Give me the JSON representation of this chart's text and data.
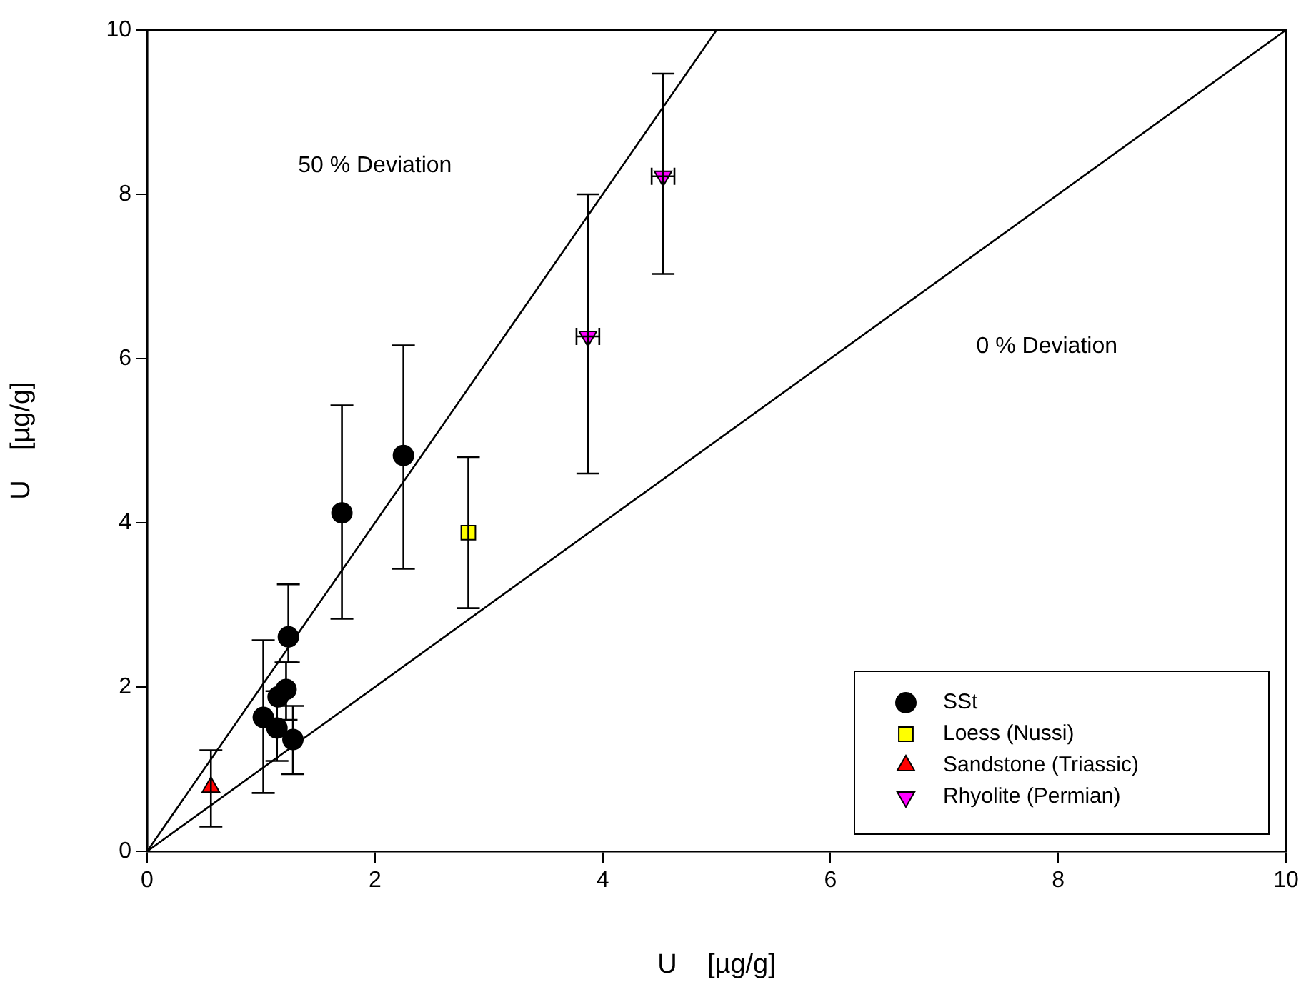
{
  "chart_data": {
    "type": "scatter",
    "xlabel": "U    [µg/g]",
    "ylabel": "U    [µg/g]",
    "xlim": [
      0,
      10
    ],
    "ylim": [
      0,
      10
    ],
    "xticks": [
      0,
      2,
      4,
      6,
      8,
      10
    ],
    "yticks": [
      0,
      2,
      4,
      6,
      8,
      10
    ],
    "grid": false,
    "legend": "bottom right",
    "series": [
      {
        "name": "SSt",
        "color": "#000000",
        "marker": "circle",
        "x": [
          1.02,
          1.14,
          1.28,
          1.15,
          1.22,
          1.24,
          1.71,
          2.25
        ],
        "values": [
          1.63,
          1.5,
          1.36,
          1.88,
          1.97,
          2.61,
          4.12,
          4.82
        ],
        "errors": [
          [
            0.71,
            2.57
          ],
          [
            1.1,
            1.95
          ],
          [
            0.94,
            1.77
          ],
          null,
          [
            1.6,
            2.3
          ],
          [
            2.3,
            3.25
          ],
          [
            2.83,
            5.43
          ],
          [
            3.44,
            6.16
          ]
        ]
      },
      {
        "name": "Loess (Nussi)",
        "color": "#ffff00",
        "marker": "square",
        "x": [
          2.82
        ],
        "values": [
          3.88
        ],
        "errors": [
          [
            2.96,
            4.8
          ]
        ]
      },
      {
        "name": "Sandstone (Triassic)",
        "color": "#ff0000",
        "marker": "triangle",
        "x": [
          0.56
        ],
        "values": [
          0.78
        ],
        "errors": [
          [
            0.3,
            1.23
          ]
        ]
      },
      {
        "name": "Rhyolite (Permian)",
        "color": "#ff00ff",
        "marker": "triangle_down",
        "x": [
          3.87,
          4.53
        ],
        "values": [
          6.27,
          8.22
        ],
        "errors": [
          [
            4.6,
            8.0
          ],
          [
            7.03,
            9.47
          ]
        ],
        "xerrors": [
          0.1,
          0.1
        ]
      },
      {
        "type": "line",
        "color": "#000000",
        "marker": "none",
        "x": [
          0,
          5
        ],
        "values": [
          0,
          10
        ]
      },
      {
        "type": "line",
        "color": "#000000",
        "marker": "none",
        "x": [
          0,
          10
        ],
        "values": [
          0,
          10
        ]
      }
    ],
    "annotations": [
      "50 % Deviation",
      "0 % Deviation"
    ]
  }
}
